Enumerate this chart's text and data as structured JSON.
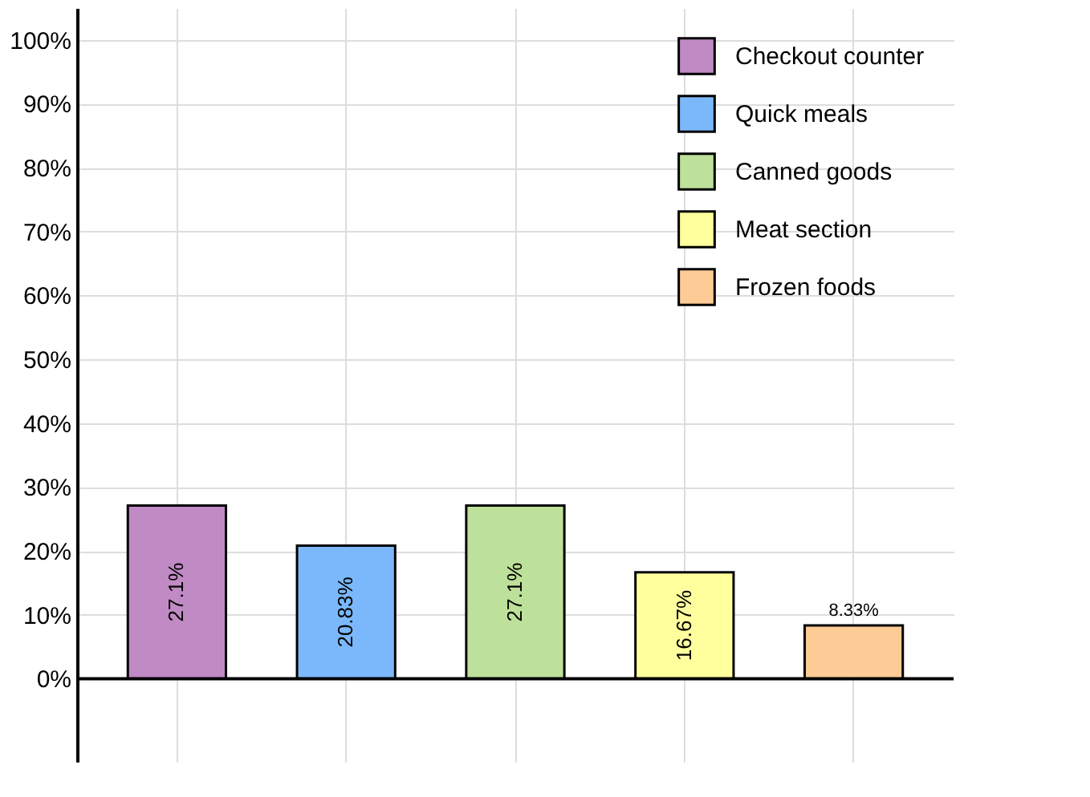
{
  "chart_data": {
    "type": "bar",
    "categories": [
      null,
      null,
      null,
      null,
      null
    ],
    "series": [
      {
        "name": "Checkout counter",
        "color": "#c08ac4",
        "values": [
          27.1,
          null,
          null,
          null,
          null
        ]
      },
      {
        "name": "Quick meals",
        "color": "#7bb8fb",
        "values": [
          null,
          20.83,
          null,
          null,
          null
        ]
      },
      {
        "name": "Canned goods",
        "color": "#bde09a",
        "values": [
          null,
          null,
          27.1,
          null,
          null
        ]
      },
      {
        "name": "Meat section",
        "color": "#ffff9e",
        "values": [
          null,
          null,
          null,
          16.67,
          null
        ]
      },
      {
        "name": "Frozen foods",
        "color": "#fdcb95",
        "values": [
          null,
          null,
          null,
          null,
          8.33
        ]
      }
    ],
    "ylim": [
      -13,
      105
    ],
    "yticks": [
      {
        "value": 0,
        "label": "0%"
      },
      {
        "value": 10,
        "label": "10%"
      },
      {
        "value": 20,
        "label": "20%"
      },
      {
        "value": 30,
        "label": "30%"
      },
      {
        "value": 40,
        "label": "40%"
      },
      {
        "value": 50,
        "label": "50%"
      },
      {
        "value": 60,
        "label": "60%"
      },
      {
        "value": 70,
        "label": "70%"
      },
      {
        "value": 80,
        "label": "80%"
      },
      {
        "value": 90,
        "label": "90%"
      },
      {
        "value": 100,
        "label": "100%"
      }
    ],
    "value_labels": [
      "27.1%",
      "20.83%",
      "27.1%",
      "16.67%",
      "8.33%"
    ],
    "tick_labels": "y",
    "grid": true,
    "legend": "top right"
  }
}
